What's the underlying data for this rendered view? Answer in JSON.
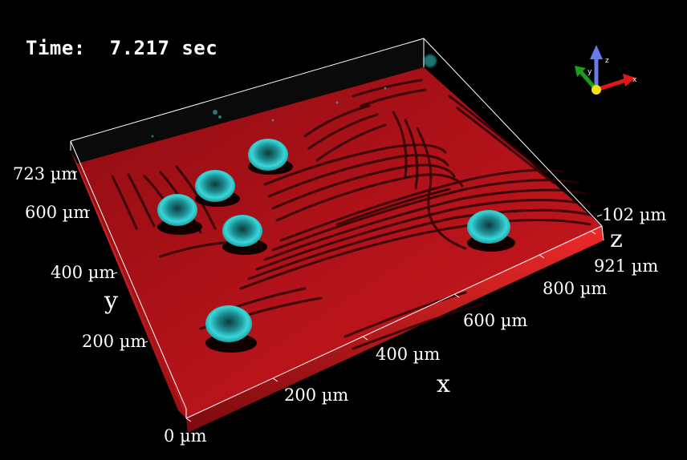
{
  "time": {
    "label": "Time:",
    "value": "7.217 sec"
  },
  "axes": {
    "x": {
      "title": "x",
      "ticks": [
        "0 µm",
        "200 µm",
        "400 µm",
        "600 µm",
        "800 µm",
        "921 µm"
      ]
    },
    "y": {
      "title": "y",
      "ticks": [
        "200 µm",
        "400 µm",
        "600 µm",
        "723 µm"
      ]
    },
    "z": {
      "title": "z",
      "ticks": [
        "102 µm"
      ]
    }
  },
  "orientation_triad": {
    "x": "x",
    "y": "y",
    "z": "z"
  },
  "colors": {
    "substrate": "#c8141e",
    "wrinkle": "#2a0306",
    "particle": "#29c4c8",
    "box_edge": "#ffffff",
    "triad_x": "#e01818",
    "triad_y": "#18a018",
    "triad_z": "#6a7ae8",
    "triad_origin": "#f2e21a"
  },
  "icons": [
    "orientation-triad-icon"
  ]
}
